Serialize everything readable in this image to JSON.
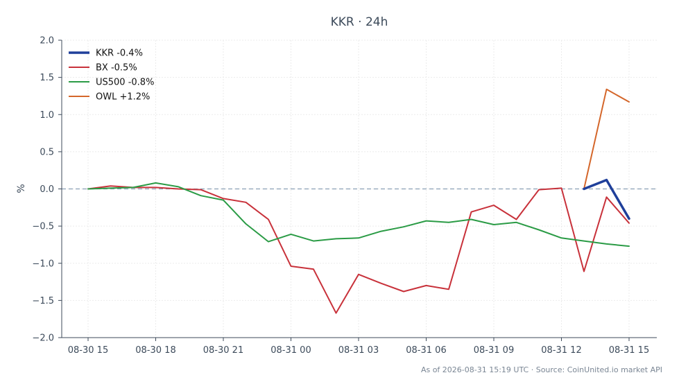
{
  "chart_data": {
    "type": "line",
    "title": "KKR · 24h",
    "ylabel": "%",
    "xlabel": "",
    "ylim": [
      -2.0,
      2.0
    ],
    "yticks": [
      2.0,
      1.5,
      1.0,
      0.5,
      0.0,
      -0.5,
      -1.0,
      -1.5,
      -2.0
    ],
    "ytick_labels": [
      "2.0",
      "1.5",
      "1.0",
      "0.5",
      "0.0",
      "−0.5",
      "−1.0",
      "−1.5",
      "−2.0"
    ],
    "x_categories": [
      "08-30 15",
      "08-30 16",
      "08-30 17",
      "08-30 18",
      "08-30 19",
      "08-30 20",
      "08-30 21",
      "08-30 22",
      "08-30 23",
      "08-31 00",
      "08-31 01",
      "08-31 02",
      "08-31 03",
      "08-31 04",
      "08-31 05",
      "08-31 06",
      "08-31 07",
      "08-31 08",
      "08-31 09",
      "08-31 10",
      "08-31 11",
      "08-31 12",
      "08-31 13",
      "08-31 14",
      "08-31 15"
    ],
    "xtick_labels": [
      "08-30 15",
      "08-30 18",
      "08-30 21",
      "08-31 00",
      "08-31 03",
      "08-31 06",
      "08-31 09",
      "08-31 12",
      "08-31 15"
    ],
    "xtick_every": 3,
    "zero_line": true,
    "grid": true,
    "legend_position": "top-left",
    "series": [
      {
        "name": "KKR -0.4%",
        "color": "#1f3f9a",
        "width": 3.5,
        "values": [
          null,
          null,
          null,
          null,
          null,
          null,
          null,
          null,
          null,
          null,
          null,
          null,
          null,
          null,
          null,
          null,
          null,
          null,
          null,
          null,
          null,
          null,
          0.0,
          0.12,
          -0.4
        ]
      },
      {
        "name": "BX -0.5%",
        "color": "#c8313a",
        "width": 2,
        "values": [
          0.0,
          0.04,
          0.02,
          0.02,
          0.0,
          -0.01,
          -0.13,
          -0.18,
          -0.41,
          -1.04,
          -1.08,
          -1.67,
          -1.15,
          -1.27,
          -1.38,
          -1.3,
          -1.35,
          -0.31,
          -0.22,
          -0.41,
          -0.01,
          0.01,
          -1.11,
          -0.11,
          -0.46
        ]
      },
      {
        "name": "US500 -0.8%",
        "color": "#2a9b45",
        "width": 2,
        "values": [
          0.0,
          0.01,
          0.02,
          0.08,
          0.03,
          -0.09,
          -0.15,
          -0.47,
          -0.71,
          -0.61,
          -0.7,
          -0.67,
          -0.66,
          -0.57,
          -0.51,
          -0.43,
          -0.45,
          -0.41,
          -0.48,
          -0.45,
          -0.55,
          -0.66,
          -0.7,
          -0.74,
          -0.77
        ]
      },
      {
        "name": "OWL +1.2%",
        "color": "#d4662a",
        "width": 2,
        "values": [
          null,
          null,
          null,
          null,
          null,
          null,
          null,
          null,
          null,
          null,
          null,
          null,
          null,
          null,
          null,
          null,
          null,
          null,
          null,
          null,
          null,
          null,
          0.0,
          1.34,
          1.17
        ]
      }
    ]
  },
  "footer": "As of 2026-08-31 15:19 UTC · Source: CoinUnited.io market API"
}
